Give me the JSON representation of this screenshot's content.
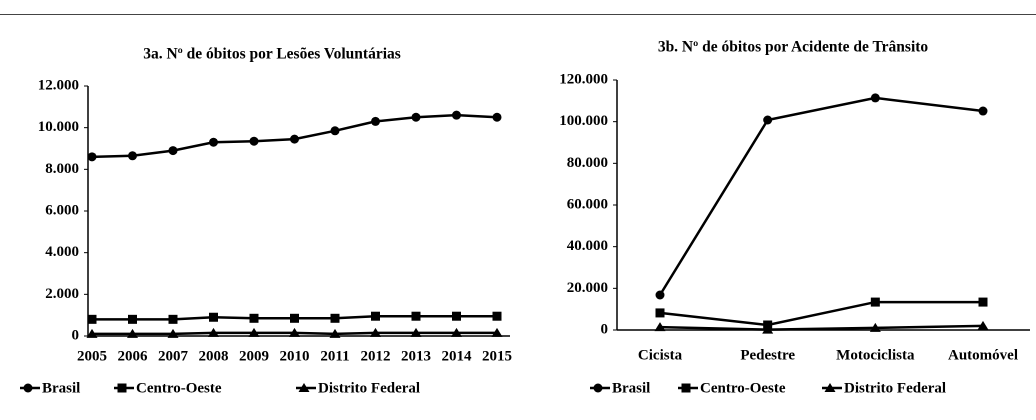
{
  "chart_data": [
    {
      "type": "line",
      "title": "3a. Nº de óbitos por Lesões Voluntárias",
      "categories": [
        "2005",
        "2006",
        "2007",
        "2008",
        "2009",
        "2010",
        "2011",
        "2012",
        "2013",
        "2014",
        "2015"
      ],
      "series": [
        {
          "name": "Brasil",
          "color": "#000000",
          "marker": "circle",
          "values": [
            8600,
            8650,
            8900,
            9300,
            9350,
            9450,
            9850,
            10300,
            10500,
            10600,
            10500
          ]
        },
        {
          "name": "Centro-Oeste",
          "color": "#000000",
          "marker": "square",
          "values": [
            800,
            800,
            800,
            900,
            850,
            850,
            850,
            950,
            950,
            950,
            950
          ]
        },
        {
          "name": "Distrito Federal",
          "color": "#000000",
          "marker": "triangle",
          "values": [
            100,
            100,
            100,
            150,
            150,
            150,
            100,
            150,
            150,
            150,
            150
          ]
        }
      ],
      "ylim": [
        0,
        12000
      ],
      "yticks": [
        0,
        {
          "value": 2000,
          "label": "2.000"
        },
        {
          "value": 4000,
          "label": "4.000"
        },
        {
          "value": 6000,
          "label": "6.000"
        },
        {
          "value": 8000,
          "label": "8.000"
        },
        {
          "value": 10000,
          "label": "10.000"
        },
        {
          "value": 12000,
          "label": "12.000"
        }
      ]
    },
    {
      "type": "line",
      "title": "3b. Nº de óbitos por Acidente de Trânsito",
      "categories": [
        "Cicista",
        "Pedestre",
        "Motociclista",
        "Automóvel"
      ],
      "series": [
        {
          "name": "Brasil",
          "color": "#000000",
          "marker": "circle",
          "values": [
            16800,
            100800,
            111400,
            105100
          ]
        },
        {
          "name": "Centro-Oeste",
          "color": "#000000",
          "marker": "square",
          "values": [
            8200,
            2400,
            13400,
            13400
          ]
        },
        {
          "name": "Distrito Federal",
          "color": "#000000",
          "marker": "triangle",
          "values": [
            1400,
            200,
            1000,
            2000
          ]
        }
      ],
      "ylim": [
        0,
        120000
      ],
      "yticks": [
        0,
        {
          "value": 20000,
          "label": "20.000"
        },
        {
          "value": 40000,
          "label": "40.000"
        },
        {
          "value": 60000,
          "label": "60.000"
        },
        {
          "value": 80000,
          "label": "80.000"
        },
        {
          "value": 100000,
          "label": "100.000"
        },
        {
          "value": 120000,
          "label": "120.000"
        }
      ]
    }
  ]
}
